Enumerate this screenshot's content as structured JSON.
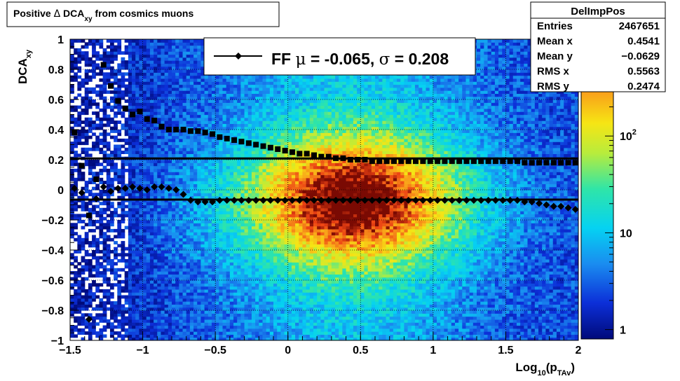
{
  "title": {
    "prefix": "Positive ",
    "delta": "Δ",
    "mid": " DCA",
    "sub": "xy",
    "suffix": " from cosmics muons"
  },
  "stats": {
    "name": "DelImpPos",
    "rows": [
      {
        "label": "Entries",
        "value": "2467651"
      },
      {
        "label": "Mean x",
        "value": "0.4541"
      },
      {
        "label": "Mean y",
        "value": "−0.0629"
      },
      {
        "label": "RMS x",
        "value": "0.5563"
      },
      {
        "label": "RMS y",
        "value": "0.2474"
      }
    ]
  },
  "legend": {
    "entry_prefix": "FF ",
    "mu_symbol": "μ",
    "mu_text": " = -0.065, ",
    "sigma_symbol": "σ",
    "sigma_text": " =   0.208"
  },
  "chart_data": {
    "type": "heatmap",
    "xlabel": {
      "base": "Log",
      "sub1": "10",
      "mid": "(p",
      "sub2": "TAv",
      "end": ")"
    },
    "ylabel": {
      "base": "DCA",
      "sub": "xy"
    },
    "xlim": [
      -1.5,
      2
    ],
    "ylim": [
      -1,
      1
    ],
    "log_z": true,
    "grid": true,
    "x_ticks": [
      {
        "v": -1.5,
        "label": "−1.5"
      },
      {
        "v": -1,
        "label": "−1"
      },
      {
        "v": -0.5,
        "label": "−0.5"
      },
      {
        "v": 0,
        "label": "0"
      },
      {
        "v": 0.5,
        "label": "0.5"
      },
      {
        "v": 1,
        "label": "1"
      },
      {
        "v": 1.5,
        "label": "1.5"
      },
      {
        "v": 2,
        "label": "2"
      }
    ],
    "y_ticks": [
      {
        "v": 1,
        "label": "1"
      },
      {
        "v": 0.8,
        "label": "0.8"
      },
      {
        "v": 0.6,
        "label": "0.6"
      },
      {
        "v": 0.4,
        "label": "0.4"
      },
      {
        "v": 0.2,
        "label": "0.2"
      },
      {
        "v": 0,
        "label": "0"
      },
      {
        "v": -0.2,
        "label": "−0.2"
      },
      {
        "v": -0.4,
        "label": "−0.4"
      },
      {
        "v": -0.6,
        "label": "−0.6"
      },
      {
        "v": -0.8,
        "label": "−0.8"
      },
      {
        "v": -1,
        "label": "−1"
      }
    ],
    "z_ticks": [
      {
        "v": 1,
        "base": "1",
        "exp": ""
      },
      {
        "v": 10,
        "base": "10",
        "exp": ""
      },
      {
        "v": 100,
        "base": "10",
        "exp": "2"
      }
    ],
    "zlim": [
      0.8,
      1000
    ],
    "density_peak": {
      "x": 0.45,
      "y": -0.07,
      "sx": 0.55,
      "sy": 0.25
    },
    "mean_line_y": -0.065,
    "sigma_line_y": 0.208,
    "series": [
      {
        "marker": "circle",
        "x": [
          -1.47,
          -1.42,
          -1.37,
          -1.32,
          -1.27,
          -1.22,
          -1.17,
          -1.12,
          -1.07,
          -1.02,
          -0.97,
          -0.92,
          -0.87,
          -0.82,
          -0.77,
          -0.72,
          -0.67,
          -0.62,
          -0.57,
          -0.52,
          -0.47,
          -0.42,
          -0.37,
          -0.32,
          -0.27,
          -0.22,
          -0.17,
          -0.12,
          -0.07,
          -0.02,
          0.03,
          0.08,
          0.13,
          0.18,
          0.23,
          0.28,
          0.33,
          0.38,
          0.43,
          0.48,
          0.53,
          0.58,
          0.63,
          0.68,
          0.73,
          0.78,
          0.83,
          0.88,
          0.93,
          0.98,
          1.03,
          1.08,
          1.13,
          1.18,
          1.23,
          1.28,
          1.33,
          1.38,
          1.43,
          1.48,
          1.53,
          1.58,
          1.63,
          1.68,
          1.73,
          1.78,
          1.83,
          1.88,
          1.93,
          1.98
        ],
        "y": [
          0.38,
          0.16,
          -0.17,
          0.07,
          0.83,
          0.69,
          0.59,
          0.54,
          0.5,
          0.52,
          0.47,
          0.46,
          0.42,
          0.4,
          0.4,
          0.4,
          0.39,
          0.39,
          0.38,
          0.37,
          0.35,
          0.34,
          0.33,
          0.32,
          0.31,
          0.3,
          0.29,
          0.28,
          0.27,
          0.26,
          0.25,
          0.24,
          0.24,
          0.23,
          0.22,
          0.22,
          0.21,
          0.21,
          0.2,
          0.2,
          0.2,
          0.19,
          0.19,
          0.19,
          0.19,
          0.19,
          0.19,
          0.19,
          0.19,
          0.19,
          0.19,
          0.19,
          0.19,
          0.19,
          0.19,
          0.19,
          0.19,
          0.19,
          0.19,
          0.19,
          0.19,
          0.19,
          0.18,
          0.18,
          0.18,
          0.18,
          0.18,
          0.18,
          0.18,
          0.18
        ]
      },
      {
        "marker": "diamond",
        "x": [
          -1.47,
          -1.42,
          -1.37,
          -1.32,
          -1.27,
          -1.22,
          -1.17,
          -1.12,
          -1.07,
          -1.02,
          -0.97,
          -0.92,
          -0.87,
          -0.82,
          -0.77,
          -0.72,
          -0.67,
          -0.62,
          -0.57,
          -0.52,
          -0.47,
          -0.42,
          -0.37,
          -0.32,
          -0.27,
          -0.22,
          -0.17,
          -0.12,
          -0.07,
          -0.02,
          0.03,
          0.08,
          0.13,
          0.18,
          0.23,
          0.28,
          0.33,
          0.38,
          0.43,
          0.48,
          0.53,
          0.58,
          0.63,
          0.68,
          0.73,
          0.78,
          0.83,
          0.88,
          0.93,
          0.98,
          1.03,
          1.08,
          1.13,
          1.18,
          1.23,
          1.28,
          1.33,
          1.38,
          1.43,
          1.48,
          1.53,
          1.58,
          1.63,
          1.68,
          1.73,
          1.78,
          1.83,
          1.88,
          1.93,
          1.98
        ],
        "y": [
          0.01,
          -0.02,
          -0.86,
          -0.06,
          0.02,
          -0.01,
          0.01,
          0.01,
          0.02,
          0.01,
          0.0,
          0.02,
          0.02,
          0.01,
          0.0,
          -0.03,
          -0.07,
          -0.08,
          -0.08,
          -0.08,
          -0.07,
          -0.07,
          -0.07,
          -0.07,
          -0.07,
          -0.07,
          -0.07,
          -0.07,
          -0.07,
          -0.07,
          -0.07,
          -0.07,
          -0.07,
          -0.07,
          -0.07,
          -0.07,
          -0.07,
          -0.07,
          -0.07,
          -0.07,
          -0.07,
          -0.07,
          -0.07,
          -0.07,
          -0.07,
          -0.07,
          -0.07,
          -0.07,
          -0.07,
          -0.07,
          -0.07,
          -0.07,
          -0.07,
          -0.07,
          -0.07,
          -0.07,
          -0.07,
          -0.07,
          -0.07,
          -0.07,
          -0.07,
          -0.07,
          -0.08,
          -0.08,
          -0.09,
          -0.1,
          -0.11,
          -0.11,
          -0.12,
          -0.13
        ]
      }
    ]
  }
}
